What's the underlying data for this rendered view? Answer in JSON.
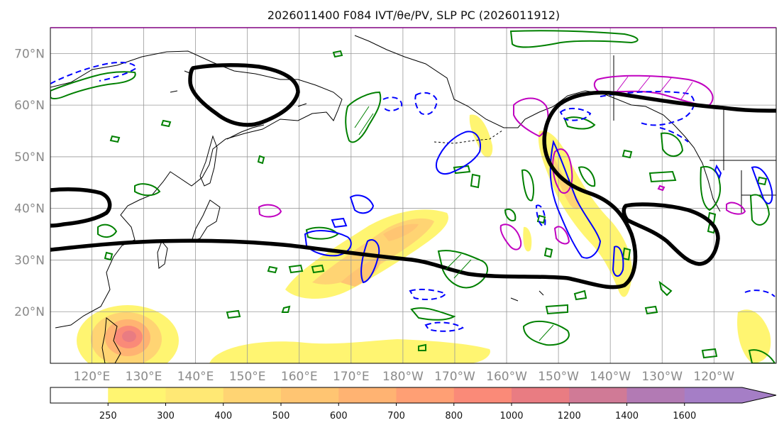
{
  "title": "2026011400 F084 IVT/θe/PV, SLP PC (2026011912)",
  "map": {
    "lon_range": [
      112,
      252
    ],
    "lat_range": [
      10,
      75
    ],
    "lat_ticks": [
      {
        "value": 20,
        "label": "20°N"
      },
      {
        "value": 30,
        "label": "30°N"
      },
      {
        "value": 40,
        "label": "40°N"
      },
      {
        "value": 50,
        "label": "50°N"
      },
      {
        "value": 60,
        "label": "60°N"
      },
      {
        "value": 70,
        "label": "70°N"
      }
    ],
    "lon_ticks": [
      {
        "value": 120,
        "label": "120°E"
      },
      {
        "value": 130,
        "label": "130°E"
      },
      {
        "value": 140,
        "label": "140°E"
      },
      {
        "value": 150,
        "label": "150°E"
      },
      {
        "value": 160,
        "label": "160°E"
      },
      {
        "value": 170,
        "label": "170°E"
      },
      {
        "value": 180,
        "label": "180°W"
      },
      {
        "value": 190,
        "label": "170°W"
      },
      {
        "value": 200,
        "label": "160°W"
      },
      {
        "value": 210,
        "label": "150°W"
      },
      {
        "value": 220,
        "label": "140°W"
      },
      {
        "value": 230,
        "label": "130°W"
      },
      {
        "value": 240,
        "label": "120°W"
      }
    ],
    "colors": {
      "slp_contour": "#000000",
      "pv_contour": "#008000",
      "theta_e_contour": "#0000ff",
      "magenta_contour": "#c000c0",
      "coastline": "#000000",
      "grid": "#999999"
    }
  },
  "colorbar": {
    "levels": [
      250,
      300,
      400,
      500,
      600,
      700,
      800,
      1000,
      1200,
      1400,
      1600
    ],
    "labels": [
      "250",
      "300",
      "400",
      "500",
      "600",
      "700",
      "800",
      "1000",
      "1200",
      "1400",
      "1600"
    ],
    "colors": [
      "#ffffff",
      "#fff571",
      "#ffe874",
      "#ffd473",
      "#ffc572",
      "#ffb372",
      "#ff9f74",
      "#fa8a78",
      "#e97c82",
      "#d07a96",
      "#b27ab4",
      "#a57ec6"
    ],
    "extend": "max"
  }
}
